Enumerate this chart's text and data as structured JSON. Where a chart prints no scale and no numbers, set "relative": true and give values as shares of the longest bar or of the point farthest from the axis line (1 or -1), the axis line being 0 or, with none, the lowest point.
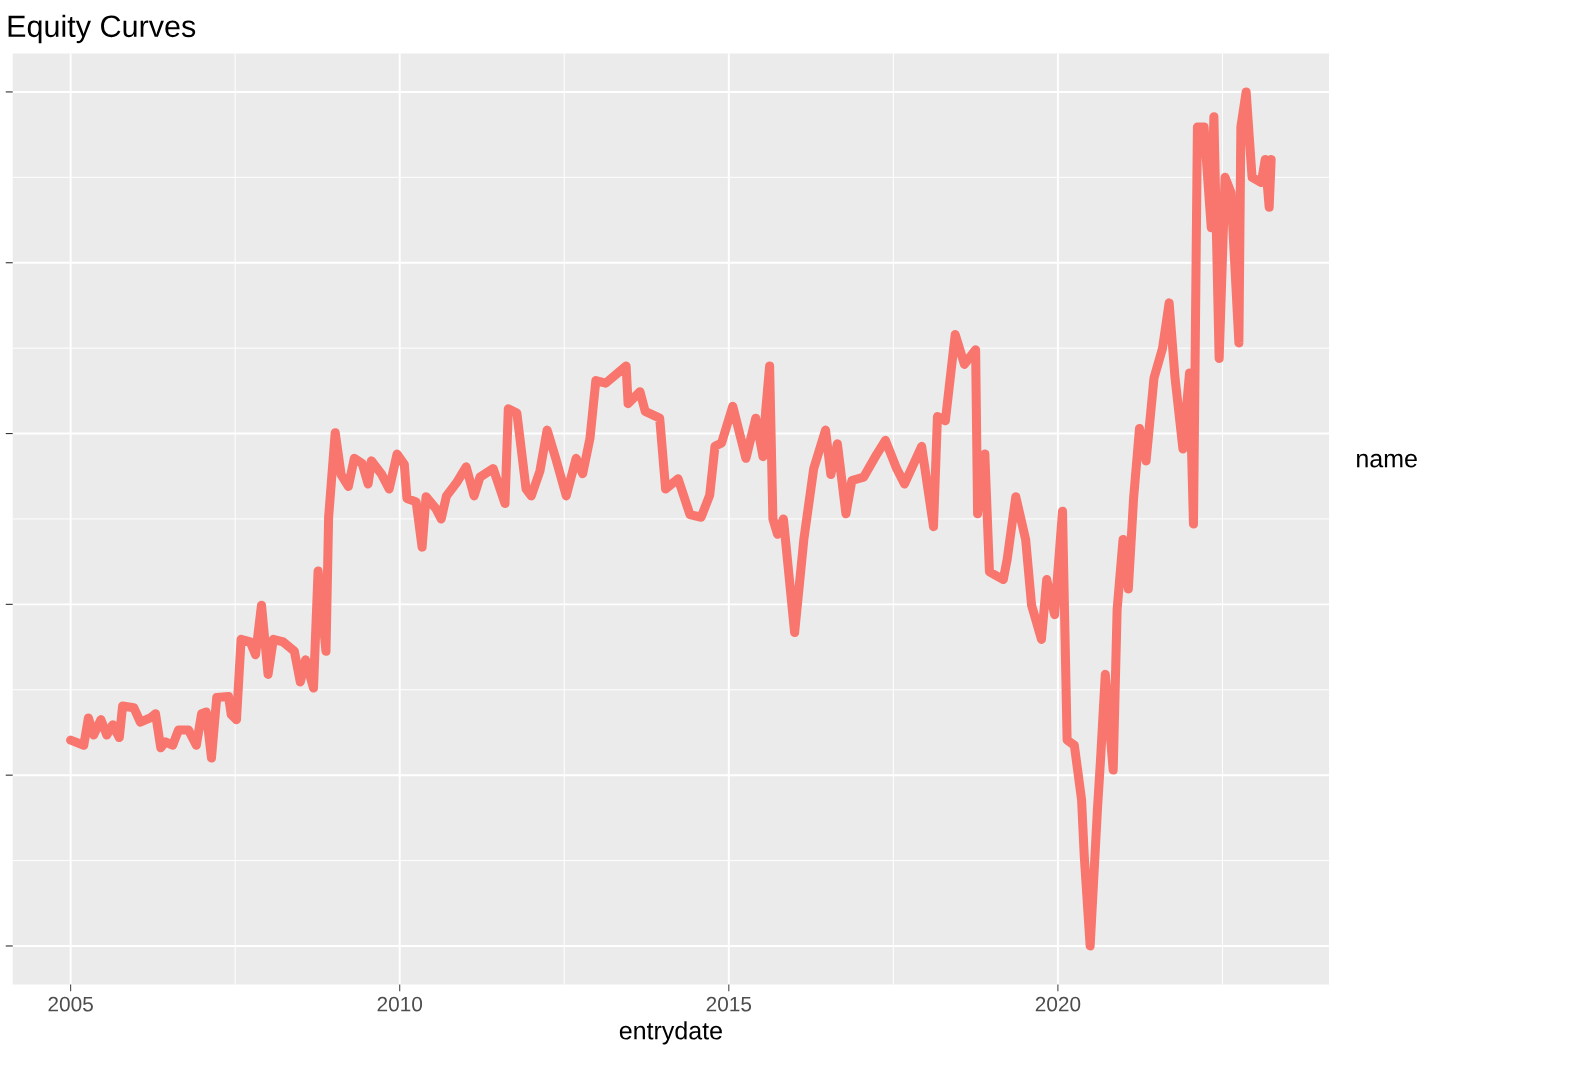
{
  "chart_data": {
    "type": "line",
    "title": "Equity Curves",
    "xlabel": "entrydate",
    "legend_title": "name",
    "relative": true,
    "grid": true,
    "tick_labels": "x",
    "xlim": [
      2004.12,
      2024.12
    ],
    "xticks": [
      2005,
      2010,
      2015,
      2020
    ],
    "x": [
      2005.0,
      2005.2,
      2005.27,
      2005.35,
      2005.46,
      2005.55,
      2005.64,
      2005.74,
      2005.79,
      2005.96,
      2006.06,
      2006.21,
      2006.29,
      2006.37,
      2006.44,
      2006.55,
      2006.64,
      2006.79,
      2006.91,
      2006.99,
      2007.06,
      2007.14,
      2007.22,
      2007.4,
      2007.44,
      2007.52,
      2007.59,
      2007.73,
      2007.81,
      2007.9,
      2008.0,
      2008.08,
      2008.23,
      2008.4,
      2008.49,
      2008.57,
      2008.69,
      2008.76,
      2008.88,
      2008.92,
      2009.02,
      2009.11,
      2009.22,
      2009.31,
      2009.43,
      2009.52,
      2009.57,
      2009.72,
      2009.84,
      2009.96,
      2010.07,
      2010.11,
      2010.25,
      2010.34,
      2010.4,
      2010.55,
      2010.63,
      2010.71,
      2010.86,
      2011.01,
      2011.13,
      2011.22,
      2011.42,
      2011.6,
      2011.65,
      2011.78,
      2011.92,
      2012.0,
      2012.13,
      2012.24,
      2012.37,
      2012.53,
      2012.68,
      2012.78,
      2012.89,
      2012.98,
      2013.13,
      2013.44,
      2013.47,
      2013.65,
      2013.73,
      2013.95,
      2014.04,
      2014.23,
      2014.41,
      2014.58,
      2014.71,
      2014.79,
      2014.89,
      2015.06,
      2015.26,
      2015.41,
      2015.52,
      2015.56,
      2015.62,
      2015.67,
      2015.74,
      2015.83,
      2016.0,
      2016.14,
      2016.29,
      2016.47,
      2016.55,
      2016.65,
      2016.78,
      2016.87,
      2017.05,
      2017.25,
      2017.38,
      2017.55,
      2017.67,
      2017.93,
      2018.11,
      2018.17,
      2018.29,
      2018.44,
      2018.58,
      2018.75,
      2018.78,
      2018.89,
      2018.96,
      2019.17,
      2019.23,
      2019.36,
      2019.51,
      2019.6,
      2019.75,
      2019.83,
      2019.95,
      2020.07,
      2020.14,
      2020.25,
      2020.36,
      2020.4,
      2020.49,
      2020.6,
      2020.65,
      2020.72,
      2020.84,
      2020.9,
      2020.99,
      2021.07,
      2021.15,
      2021.24,
      2021.34,
      2021.46,
      2021.59,
      2021.69,
      2021.78,
      2021.9,
      2022.0,
      2022.06,
      2022.12,
      2022.22,
      2022.33,
      2022.37,
      2022.45,
      2022.54,
      2022.63,
      2022.75,
      2022.78,
      2022.86,
      2022.95,
      2023.09,
      2023.15,
      2023.21,
      2023.24
    ],
    "series": [
      {
        "color": "#f8766d",
        "values": [
          0.241,
          0.235,
          0.267,
          0.247,
          0.265,
          0.247,
          0.259,
          0.244,
          0.281,
          0.279,
          0.262,
          0.267,
          0.272,
          0.232,
          0.239,
          0.235,
          0.253,
          0.253,
          0.235,
          0.272,
          0.274,
          0.22,
          0.291,
          0.292,
          0.271,
          0.265,
          0.359,
          0.356,
          0.341,
          0.399,
          0.318,
          0.359,
          0.356,
          0.345,
          0.309,
          0.335,
          0.302,
          0.439,
          0.345,
          0.502,
          0.601,
          0.552,
          0.538,
          0.571,
          0.565,
          0.541,
          0.568,
          0.553,
          0.535,
          0.576,
          0.564,
          0.524,
          0.52,
          0.467,
          0.526,
          0.512,
          0.5,
          0.527,
          0.542,
          0.561,
          0.527,
          0.549,
          0.559,
          0.518,
          0.629,
          0.624,
          0.535,
          0.527,
          0.556,
          0.604,
          0.571,
          0.527,
          0.571,
          0.553,
          0.594,
          0.662,
          0.659,
          0.679,
          0.635,
          0.649,
          0.626,
          0.618,
          0.535,
          0.547,
          0.505,
          0.502,
          0.528,
          0.585,
          0.589,
          0.632,
          0.571,
          0.618,
          0.573,
          0.626,
          0.679,
          0.5,
          0.482,
          0.5,
          0.367,
          0.476,
          0.559,
          0.604,
          0.552,
          0.588,
          0.506,
          0.545,
          0.549,
          0.576,
          0.592,
          0.559,
          0.541,
          0.585,
          0.491,
          0.62,
          0.615,
          0.716,
          0.681,
          0.698,
          0.506,
          0.576,
          0.438,
          0.429,
          0.453,
          0.526,
          0.476,
          0.399,
          0.359,
          0.429,
          0.388,
          0.509,
          0.241,
          0.235,
          0.171,
          0.106,
          0,
          0.159,
          0.221,
          0.318,
          0.206,
          0.394,
          0.476,
          0.418,
          0.524,
          0.606,
          0.568,
          0.665,
          0.7,
          0.753,
          0.665,
          0.582,
          0.671,
          0.494,
          0.959,
          0.959,
          0.841,
          0.971,
          0.688,
          0.9,
          0.882,
          0.706,
          0.959,
          1,
          0.9,
          0.894,
          0.921,
          0.865,
          0.921
        ]
      }
    ]
  }
}
